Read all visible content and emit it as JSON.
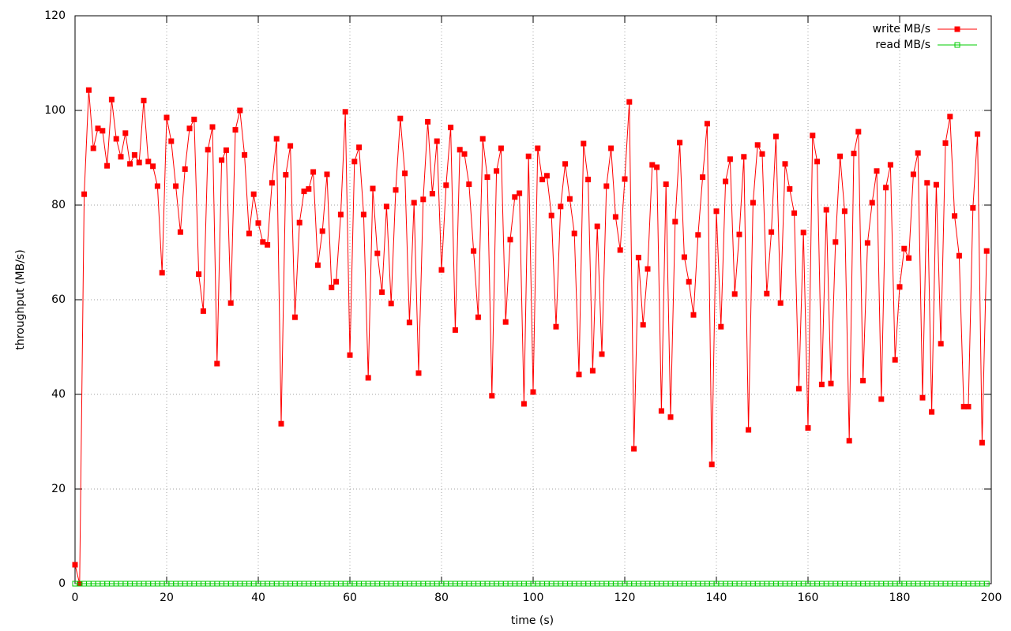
{
  "chart_data": {
    "type": "line",
    "xlabel": "time (s)",
    "ylabel": "throughput (MB/s)",
    "x": [
      0,
      1,
      2,
      3,
      4,
      5,
      6,
      7,
      8,
      9,
      10,
      11,
      12,
      13,
      14,
      15,
      16,
      17,
      18,
      19,
      20,
      21,
      22,
      23,
      24,
      25,
      26,
      27,
      28,
      29,
      30,
      31,
      32,
      33,
      34,
      35,
      36,
      37,
      38,
      39,
      40,
      41,
      42,
      43,
      44,
      45,
      46,
      47,
      48,
      49,
      50,
      51,
      52,
      53,
      54,
      55,
      56,
      57,
      58,
      59,
      60,
      61,
      62,
      63,
      64,
      65,
      66,
      67,
      68,
      69,
      70,
      71,
      72,
      73,
      74,
      75,
      76,
      77,
      78,
      79,
      80,
      81,
      82,
      83,
      84,
      85,
      86,
      87,
      88,
      89,
      90,
      91,
      92,
      93,
      94,
      95,
      96,
      97,
      98,
      99,
      100,
      101,
      102,
      103,
      104,
      105,
      106,
      107,
      108,
      109,
      110,
      111,
      112,
      113,
      114,
      115,
      116,
      117,
      118,
      119,
      120,
      121,
      122,
      123,
      124,
      125,
      126,
      127,
      128,
      129,
      130,
      131,
      132,
      133,
      134,
      135,
      136,
      137,
      138,
      139,
      140,
      141,
      142,
      143,
      144,
      145,
      146,
      147,
      148,
      149,
      150,
      151,
      152,
      153,
      154,
      155,
      156,
      157,
      158,
      159,
      160,
      161,
      162,
      163,
      164,
      165,
      166,
      167,
      168,
      169,
      170,
      171,
      172,
      173,
      174,
      175,
      176,
      177,
      178,
      179,
      180,
      181,
      182,
      183,
      184,
      185,
      186,
      187,
      188,
      189,
      190,
      191,
      192,
      193,
      194,
      195,
      196,
      197,
      198,
      199
    ],
    "series": [
      {
        "name": "write MB/s",
        "color": "#ff0000",
        "marker": "filled-square",
        "values": [
          4,
          0,
          82.3,
          104.3,
          92,
          96.2,
          95.7,
          88.3,
          102.3,
          94,
          90.2,
          95.2,
          88.7,
          90.6,
          89,
          102.1,
          89.2,
          88.2,
          84,
          65.7,
          98.5,
          93.5,
          84,
          74.3,
          87.6,
          96.2,
          98.1,
          65.4,
          57.6,
          91.7,
          96.5,
          46.5,
          89.5,
          91.6,
          59.3,
          95.9,
          100,
          90.6,
          74,
          82.3,
          76.2,
          72.2,
          71.6,
          84.7,
          94,
          33.8,
          86.4,
          92.5,
          56.3,
          76.3,
          82.9,
          83.4,
          87,
          67.3,
          74.5,
          86.5,
          62.6,
          63.8,
          78,
          99.7,
          48.3,
          89.2,
          92.2,
          78,
          43.5,
          83.5,
          69.8,
          61.6,
          79.7,
          59.2,
          83.2,
          98.3,
          86.7,
          55.2,
          80.5,
          44.5,
          81.2,
          97.6,
          82.4,
          93.5,
          66.3,
          84.2,
          96.4,
          53.6,
          91.7,
          90.8,
          84.4,
          70.3,
          56.3,
          94,
          85.9,
          39.7,
          87.2,
          92,
          55.3,
          72.7,
          81.7,
          82.5,
          38,
          90.3,
          40.5,
          92,
          85.4,
          86.2,
          77.8,
          54.3,
          79.7,
          88.7,
          81.3,
          74,
          44.2,
          93,
          85.4,
          45,
          75.5,
          48.5,
          84,
          92,
          77.5,
          70.5,
          85.5,
          101.8,
          28.5,
          68.9,
          54.7,
          66.5,
          88.5,
          88,
          36.5,
          84.4,
          35.2,
          76.5,
          93.2,
          69,
          63.8,
          56.8,
          73.7,
          85.9,
          97.2,
          25.2,
          78.7,
          54.3,
          85,
          89.7,
          61.2,
          73.8,
          90.2,
          32.5,
          80.5,
          92.7,
          90.8,
          61.3,
          74.3,
          94.5,
          59.3,
          88.7,
          83.4,
          78.3,
          41.2,
          74.2,
          32.9,
          94.7,
          89.2,
          42.1,
          79,
          42.3,
          72.2,
          90.3,
          78.7,
          30.2,
          90.9,
          95.5,
          42.9,
          72,
          80.5,
          87.2,
          39,
          83.7,
          88.5,
          47.3,
          62.7,
          70.8,
          68.8,
          86.5,
          91,
          39.3,
          84.7,
          36.3,
          84.3,
          50.7,
          93.1,
          98.7,
          77.7,
          69.3,
          37.4,
          37.4,
          79.4,
          95,
          29.8,
          70.3
        ]
      },
      {
        "name": "read MB/s",
        "color": "#00cc00",
        "marker": "open-square",
        "values": [
          0,
          0,
          0,
          0,
          0,
          0,
          0,
          0,
          0,
          0,
          0,
          0,
          0,
          0,
          0,
          0,
          0,
          0,
          0,
          0,
          0,
          0,
          0,
          0,
          0,
          0,
          0,
          0,
          0,
          0,
          0,
          0,
          0,
          0,
          0,
          0,
          0,
          0,
          0,
          0,
          0,
          0,
          0,
          0,
          0,
          0,
          0,
          0,
          0,
          0,
          0,
          0,
          0,
          0,
          0,
          0,
          0,
          0,
          0,
          0,
          0,
          0,
          0,
          0,
          0,
          0,
          0,
          0,
          0,
          0,
          0,
          0,
          0,
          0,
          0,
          0,
          0,
          0,
          0,
          0,
          0,
          0,
          0,
          0,
          0,
          0,
          0,
          0,
          0,
          0,
          0,
          0,
          0,
          0,
          0,
          0,
          0,
          0,
          0,
          0,
          0,
          0,
          0,
          0,
          0,
          0,
          0,
          0,
          0,
          0,
          0,
          0,
          0,
          0,
          0,
          0,
          0,
          0,
          0,
          0,
          0,
          0,
          0,
          0,
          0,
          0,
          0,
          0,
          0,
          0,
          0,
          0,
          0,
          0,
          0,
          0,
          0,
          0,
          0,
          0,
          0,
          0,
          0,
          0,
          0,
          0,
          0,
          0,
          0,
          0,
          0,
          0,
          0,
          0,
          0,
          0,
          0,
          0,
          0,
          0,
          0,
          0,
          0,
          0,
          0,
          0,
          0,
          0,
          0,
          0,
          0,
          0,
          0,
          0,
          0,
          0,
          0,
          0,
          0,
          0,
          0,
          0,
          0,
          0,
          0,
          0,
          0,
          0,
          0,
          0,
          0,
          0,
          0,
          0,
          0,
          0,
          0,
          0,
          0,
          0
        ]
      }
    ],
    "xlim": [
      0,
      200
    ],
    "xticks": [
      0,
      20,
      40,
      60,
      80,
      100,
      120,
      140,
      160,
      180,
      200
    ],
    "ylim": [
      0,
      120
    ],
    "yticks": [
      0,
      20,
      40,
      60,
      80,
      100,
      120
    ],
    "grid": true,
    "legend": "top-right"
  }
}
